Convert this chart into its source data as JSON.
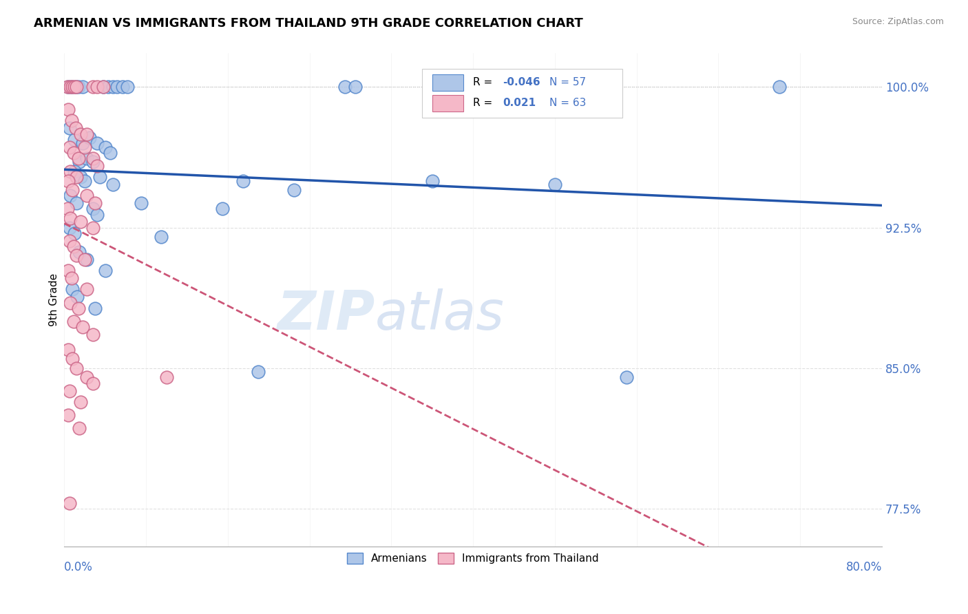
{
  "title": "ARMENIAN VS IMMIGRANTS FROM THAILAND 9TH GRADE CORRELATION CHART",
  "source": "Source: ZipAtlas.com",
  "ylabel": "9th Grade",
  "xmin": 0.0,
  "xmax": 80.0,
  "ymin": 75.5,
  "ymax": 101.8,
  "legend_r_blue": "-0.046",
  "legend_n_blue": "57",
  "legend_r_pink": "0.021",
  "legend_n_pink": "63",
  "blue_color": "#aec6e8",
  "pink_color": "#f5b8c8",
  "blue_edge": "#5588cc",
  "pink_edge": "#cc6688",
  "trend_blue_color": "#2255aa",
  "trend_pink_color": "#cc5577",
  "watermark_color": "#dce8f5",
  "ytick_vals": [
    77.5,
    85.0,
    92.5,
    100.0
  ],
  "ytick_labels": [
    "77.5%",
    "85.0%",
    "92.5%",
    "100.0%"
  ],
  "blue_scatter": [
    [
      0.4,
      100.0
    ],
    [
      0.7,
      100.0
    ],
    [
      1.1,
      100.0
    ],
    [
      1.4,
      100.0
    ],
    [
      1.8,
      100.0
    ],
    [
      3.8,
      100.0
    ],
    [
      4.3,
      100.0
    ],
    [
      4.8,
      100.0
    ],
    [
      5.2,
      100.0
    ],
    [
      5.7,
      100.0
    ],
    [
      6.2,
      100.0
    ],
    [
      27.5,
      100.0
    ],
    [
      28.5,
      100.0
    ],
    [
      70.0,
      100.0
    ],
    [
      0.5,
      97.8
    ],
    [
      1.0,
      97.2
    ],
    [
      1.8,
      97.0
    ],
    [
      2.5,
      97.3
    ],
    [
      3.2,
      97.0
    ],
    [
      4.0,
      96.8
    ],
    [
      4.5,
      96.5
    ],
    [
      1.5,
      96.0
    ],
    [
      2.2,
      96.2
    ],
    [
      2.8,
      96.0
    ],
    [
      1.0,
      95.5
    ],
    [
      1.6,
      95.2
    ],
    [
      2.0,
      95.0
    ],
    [
      3.5,
      95.2
    ],
    [
      4.8,
      94.8
    ],
    [
      17.5,
      95.0
    ],
    [
      22.5,
      94.5
    ],
    [
      36.0,
      95.0
    ],
    [
      48.0,
      94.8
    ],
    [
      0.6,
      94.2
    ],
    [
      1.2,
      93.8
    ],
    [
      2.8,
      93.5
    ],
    [
      3.2,
      93.2
    ],
    [
      7.5,
      93.8
    ],
    [
      15.5,
      93.5
    ],
    [
      0.5,
      92.5
    ],
    [
      1.0,
      92.2
    ],
    [
      9.5,
      92.0
    ],
    [
      1.5,
      91.2
    ],
    [
      2.2,
      90.8
    ],
    [
      4.0,
      90.2
    ],
    [
      0.8,
      89.2
    ],
    [
      1.3,
      88.8
    ],
    [
      3.0,
      88.2
    ],
    [
      55.0,
      84.5
    ],
    [
      19.0,
      84.8
    ]
  ],
  "pink_scatter": [
    [
      0.3,
      100.0
    ],
    [
      0.6,
      100.0
    ],
    [
      0.8,
      100.0
    ],
    [
      1.0,
      100.0
    ],
    [
      1.2,
      100.0
    ],
    [
      2.8,
      100.0
    ],
    [
      3.2,
      100.0
    ],
    [
      3.8,
      100.0
    ],
    [
      0.4,
      98.8
    ],
    [
      0.7,
      98.2
    ],
    [
      1.1,
      97.8
    ],
    [
      1.6,
      97.5
    ],
    [
      2.2,
      97.5
    ],
    [
      0.5,
      96.8
    ],
    [
      0.9,
      96.5
    ],
    [
      1.4,
      96.2
    ],
    [
      2.0,
      96.8
    ],
    [
      2.8,
      96.2
    ],
    [
      3.2,
      95.8
    ],
    [
      0.6,
      95.5
    ],
    [
      1.2,
      95.2
    ],
    [
      0.4,
      95.0
    ],
    [
      0.8,
      94.5
    ],
    [
      2.2,
      94.2
    ],
    [
      3.0,
      93.8
    ],
    [
      0.3,
      93.5
    ],
    [
      0.6,
      93.0
    ],
    [
      1.6,
      92.8
    ],
    [
      2.8,
      92.5
    ],
    [
      0.5,
      91.8
    ],
    [
      0.9,
      91.5
    ],
    [
      1.2,
      91.0
    ],
    [
      2.0,
      90.8
    ],
    [
      0.4,
      90.2
    ],
    [
      0.7,
      89.8
    ],
    [
      2.2,
      89.2
    ],
    [
      0.6,
      88.5
    ],
    [
      1.4,
      88.2
    ],
    [
      0.9,
      87.5
    ],
    [
      1.8,
      87.2
    ],
    [
      2.8,
      86.8
    ],
    [
      0.4,
      86.0
    ],
    [
      0.8,
      85.5
    ],
    [
      1.2,
      85.0
    ],
    [
      2.2,
      84.5
    ],
    [
      0.5,
      83.8
    ],
    [
      1.6,
      83.2
    ],
    [
      0.4,
      82.5
    ],
    [
      1.5,
      81.8
    ],
    [
      2.8,
      84.2
    ],
    [
      10.0,
      84.5
    ],
    [
      0.5,
      77.8
    ]
  ]
}
